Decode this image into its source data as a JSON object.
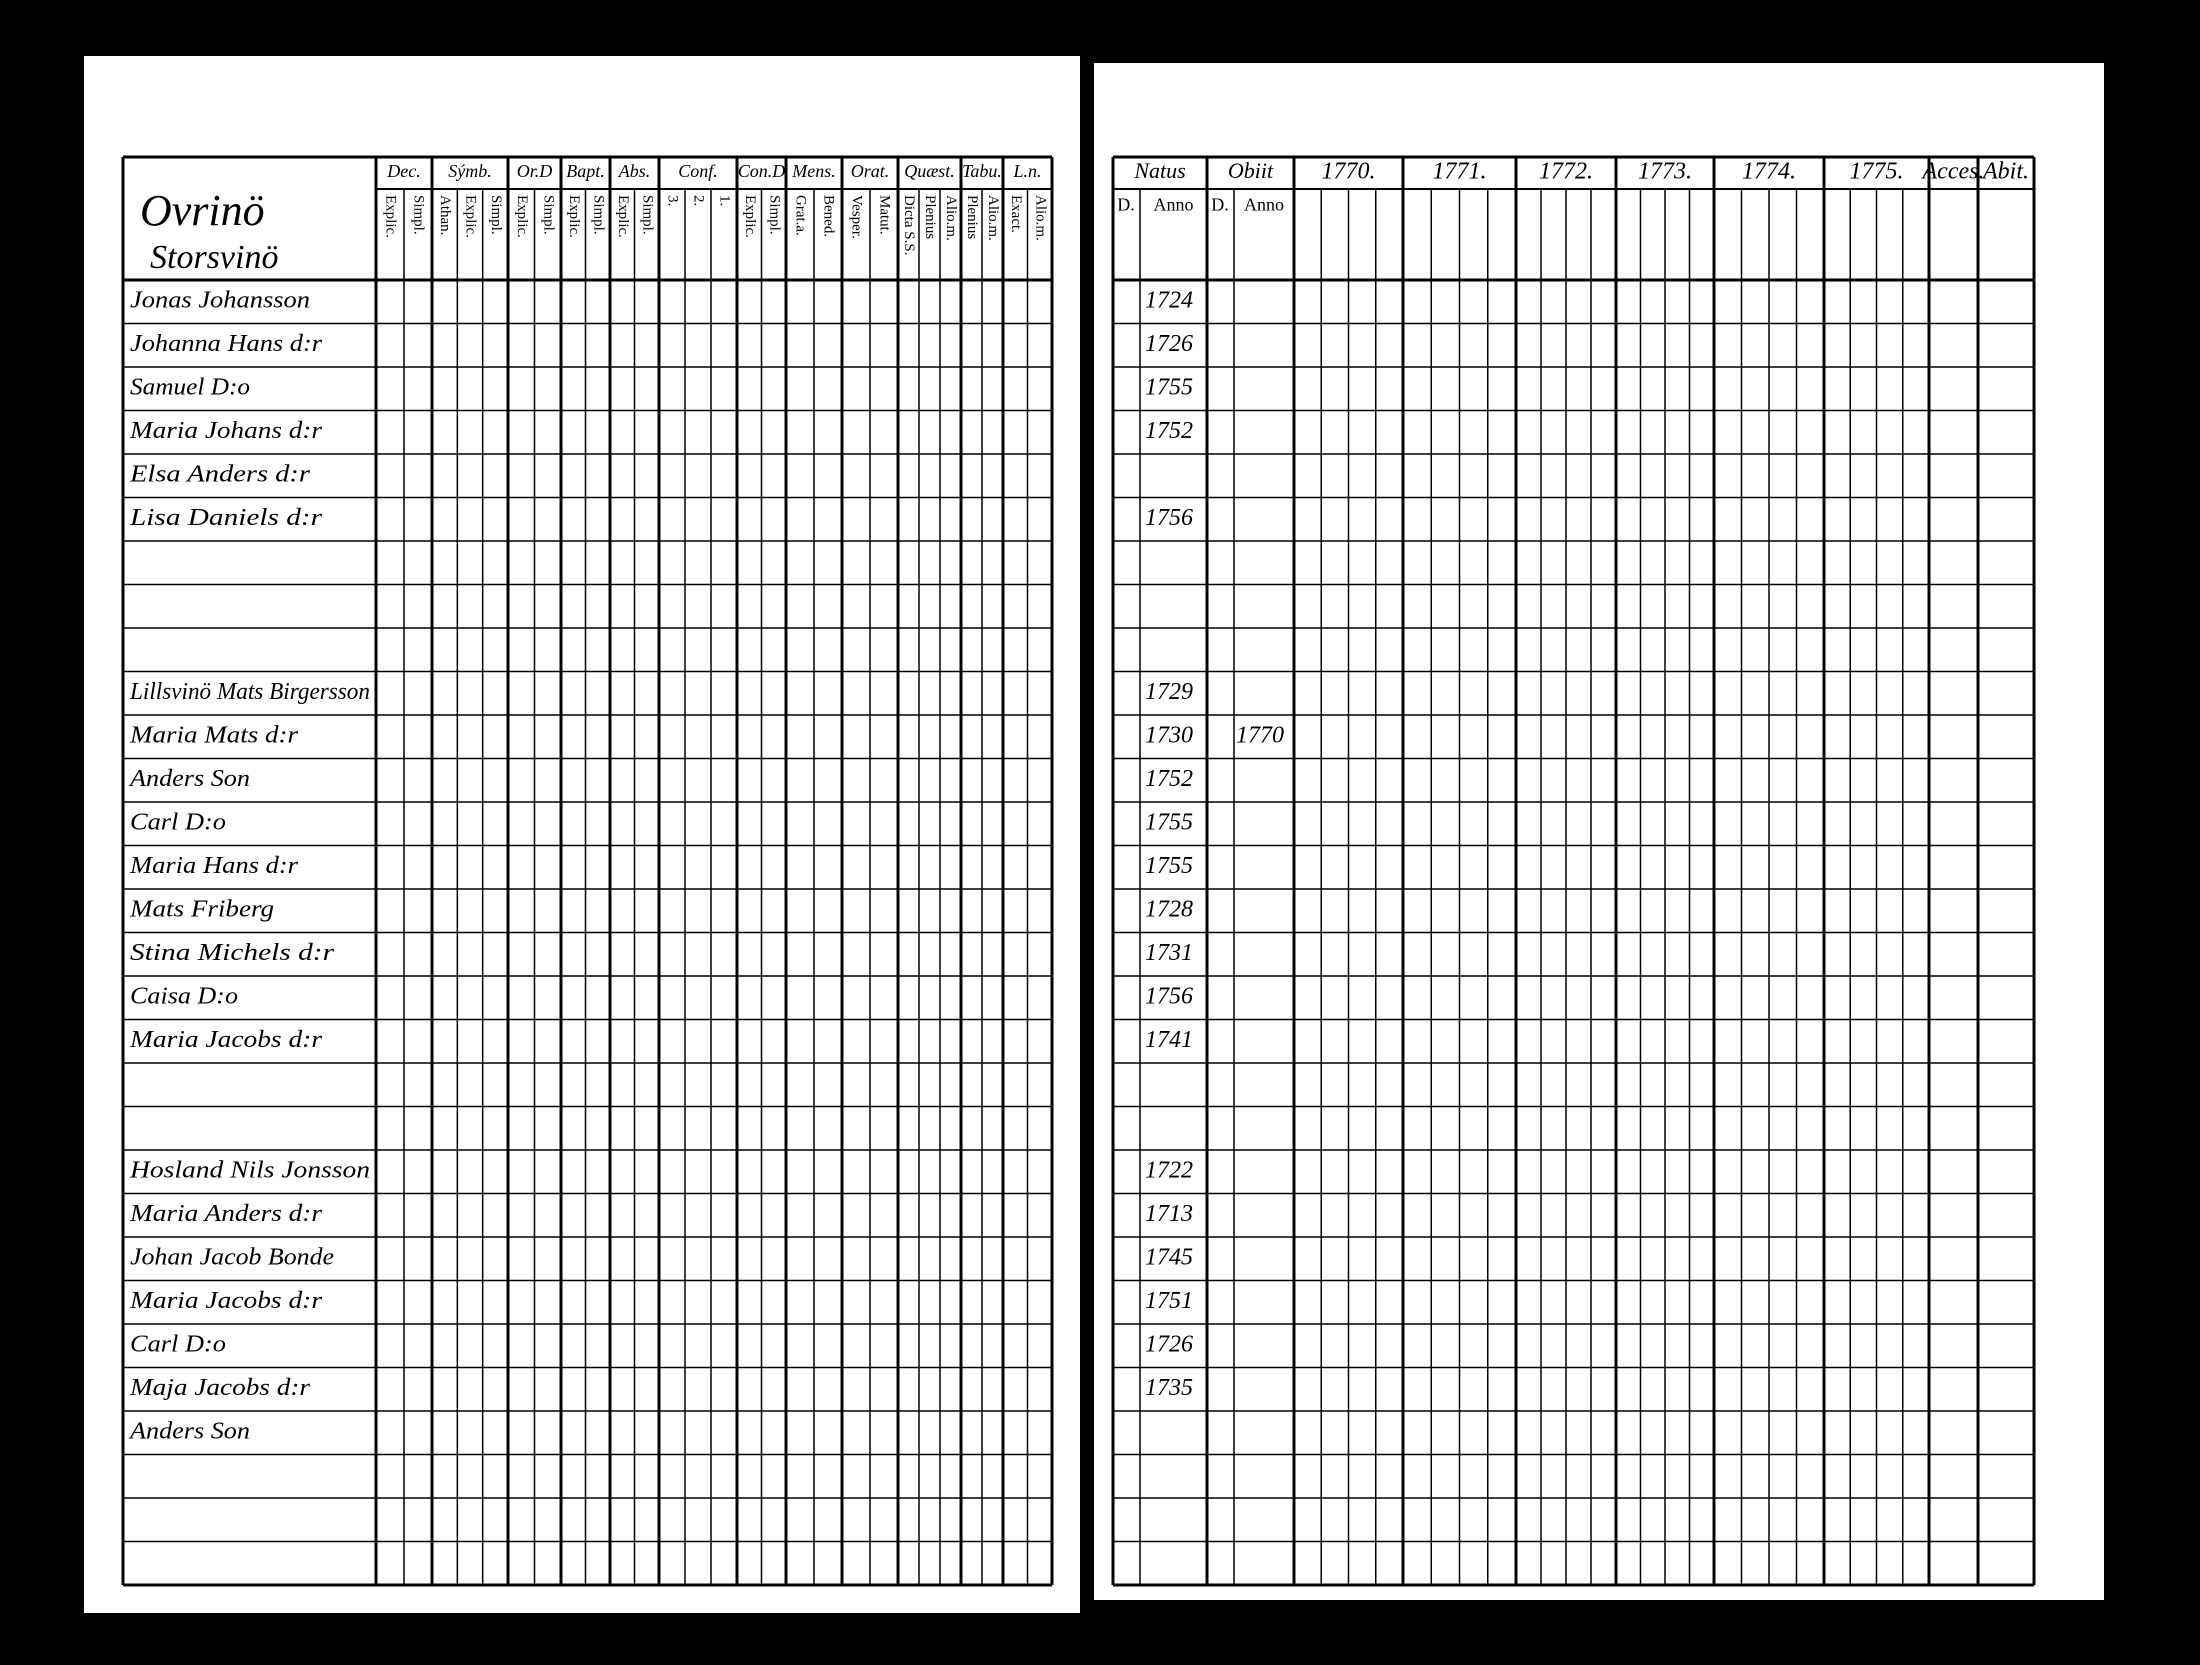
{
  "left_page": {
    "place": [
      "Ovrinö",
      "Storsvinö"
    ],
    "columns": [
      {
        "head": "Dec.",
        "sub": [
          "Explic.",
          "Simpl."
        ]
      },
      {
        "head": "Sýmb.",
        "sub": [
          "Athan.",
          "Explic.",
          "Simpl."
        ]
      },
      {
        "head": "Or.D",
        "sub": [
          "Explic.",
          "Simpl."
        ]
      },
      {
        "head": "Bapt.",
        "sub": [
          "Explic.",
          "Simpl."
        ]
      },
      {
        "head": "Abs.",
        "sub": [
          "Explic.",
          "Simpl."
        ]
      },
      {
        "head": "Conf.",
        "sub": [
          "3.",
          "2.",
          "1."
        ]
      },
      {
        "head": "Con.D",
        "sub": [
          "Explic.",
          "Simpl."
        ]
      },
      {
        "head": "Mens.",
        "sub": [
          "Grat.a.",
          "Bened."
        ]
      },
      {
        "head": "Orat.",
        "sub": [
          "Vesper.",
          "Matut."
        ]
      },
      {
        "head": "Quæst.",
        "sub": [
          "Dicta S.S.",
          "Plenius",
          "Alio.m."
        ]
      },
      {
        "head": "Tabu.",
        "sub": [
          "Plenius",
          "Alio.m."
        ]
      },
      {
        "head": "L.n.",
        "sub": [
          "Exact.",
          "Alio.m."
        ]
      }
    ]
  },
  "right_page": {
    "columns": [
      {
        "head": "Natus",
        "sub": [
          "D.",
          "Anno"
        ]
      },
      {
        "head": "Obiit",
        "sub": [
          "D.",
          "Anno"
        ]
      },
      {
        "head": "1770."
      },
      {
        "head": "1771."
      },
      {
        "head": "1772."
      },
      {
        "head": "1773."
      },
      {
        "head": "1774."
      },
      {
        "head": "1775."
      },
      {
        "head": "Acces."
      },
      {
        "head": "Abit."
      }
    ]
  },
  "rows": [
    {
      "name": "Jonas Johansson",
      "born": "1724"
    },
    {
      "name": "Johanna Hans d:r",
      "born": "1726"
    },
    {
      "name": "Samuel D:o",
      "born": "1755"
    },
    {
      "name": "Maria Johans d:r",
      "born": "1752"
    },
    {
      "name": "Elsa Anders d:r"
    },
    {
      "name": "Lisa Daniels d:r",
      "born": "1756"
    },
    null,
    null,
    null,
    {
      "name": "Lillsvinö Mats Birgersson",
      "born": "1729"
    },
    {
      "name": "Maria Mats d:r",
      "born": "1730",
      "died": "1770"
    },
    {
      "name": "Anders Son",
      "born": "1752"
    },
    {
      "name": "Carl D:o",
      "born": "1755"
    },
    {
      "name": "Maria Hans d:r",
      "born": "1755"
    },
    {
      "name": "Mats Friberg",
      "born": "1728"
    },
    {
      "name": "Stina Michels d:r",
      "born": "1731"
    },
    {
      "name": "Caisa D:o",
      "born": "1756"
    },
    {
      "name": "Maria Jacobs d:r",
      "born": "1741"
    },
    null,
    null,
    {
      "name": "Hosland Nils Jonsson",
      "born": "1722"
    },
    {
      "name": "Maria Anders d:r",
      "born": "1713"
    },
    {
      "name": "Johan Jacob Bonde",
      "born": "1745"
    },
    {
      "name": "Maria Jacobs d:r",
      "born": "1751"
    },
    {
      "name": "Carl D:o",
      "born": "1726"
    },
    {
      "name": "Maja Jacobs d:r",
      "born": "1735"
    },
    {
      "name": "Anders Son"
    },
    null,
    null,
    null
  ]
}
